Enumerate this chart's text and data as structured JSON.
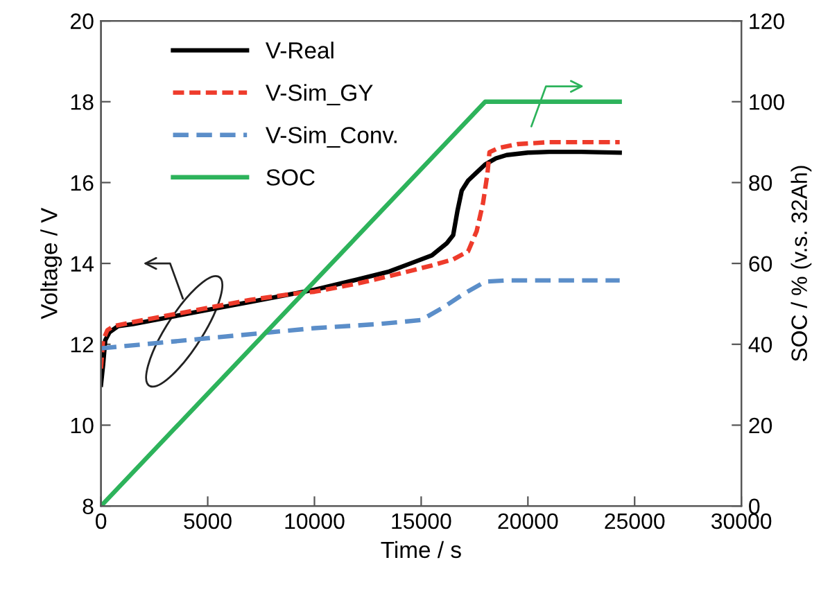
{
  "chart_data": {
    "type": "line",
    "xlabel": "Time / s",
    "ylabel": "Voltage / V",
    "y2label": "SOC / % (v.s. 32Ah)",
    "xlim": [
      0,
      30000
    ],
    "xticks": [
      0,
      5000,
      10000,
      15000,
      20000,
      25000,
      30000
    ],
    "ylim": [
      8,
      20
    ],
    "yticks": [
      8,
      10,
      12,
      14,
      16,
      18,
      20
    ],
    "y2lim": [
      0,
      120
    ],
    "y2ticks": [
      0,
      20,
      40,
      60,
      80,
      100,
      120
    ],
    "grid": false,
    "legend": "top left",
    "marker": "none",
    "series": [
      {
        "name": "V-Real",
        "color": "#000000",
        "line_style": "solid",
        "x": [
          0,
          100,
          200,
          400,
          800,
          1500,
          3000,
          5000,
          7000,
          9000,
          10000,
          12000,
          13500,
          14500,
          15500,
          16200,
          16500,
          16700,
          16900,
          17200,
          17600,
          18000,
          18500,
          19000,
          20000,
          21000,
          22500,
          24300
        ],
        "values": [
          11.0,
          11.5,
          12.1,
          12.3,
          12.45,
          12.5,
          12.65,
          12.85,
          13.05,
          13.25,
          13.35,
          13.6,
          13.8,
          14.0,
          14.2,
          14.5,
          14.7,
          15.3,
          15.8,
          16.05,
          16.25,
          16.45,
          16.6,
          16.68,
          16.74,
          16.76,
          16.76,
          16.74
        ]
      },
      {
        "name": "V-Sim_GY",
        "color": "#ee3b2b",
        "line_style": "dashed",
        "x": [
          0,
          100,
          300,
          600,
          1500,
          3000,
          5000,
          7000,
          9000,
          10000,
          12000,
          14000,
          15500,
          16500,
          17200,
          17600,
          17900,
          18100,
          18200,
          18600,
          19500,
          21000,
          24300
        ],
        "values": [
          11.4,
          12.1,
          12.35,
          12.45,
          12.55,
          12.7,
          12.9,
          13.1,
          13.25,
          13.3,
          13.5,
          13.75,
          13.95,
          14.1,
          14.3,
          14.8,
          15.5,
          16.2,
          16.75,
          16.85,
          16.95,
          17.0,
          17.0
        ]
      },
      {
        "name": "V-Sim_Conv.",
        "color": "#5b8ec9",
        "line_style": "dashed",
        "x": [
          0,
          2000,
          5000,
          8000,
          10000,
          13000,
          15000,
          16000,
          17000,
          18000,
          19000,
          24300
        ],
        "values": [
          11.9,
          12.0,
          12.15,
          12.3,
          12.4,
          12.5,
          12.6,
          12.9,
          13.25,
          13.55,
          13.58,
          13.58
        ]
      },
      {
        "name": "SOC",
        "color": "#2db35b",
        "line_style": "solid",
        "axis": "y2",
        "x": [
          0,
          18000,
          24300
        ],
        "values": [
          0,
          100,
          100
        ]
      }
    ]
  }
}
